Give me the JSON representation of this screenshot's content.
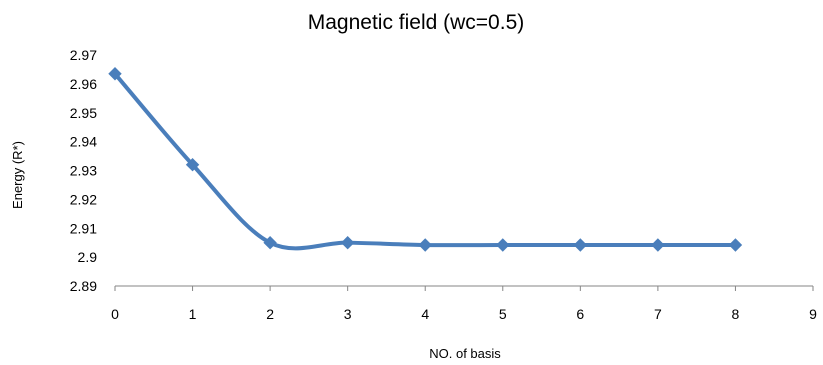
{
  "chart_data": {
    "type": "line",
    "title": "Magnetic field (wc=0.5)",
    "xlabel": "NO. of basis",
    "ylabel": "Energy (R*)",
    "xlim": [
      0,
      9
    ],
    "ylim": [
      2.89,
      2.97
    ],
    "x_ticks": [
      "0",
      "1",
      "2",
      "3",
      "4",
      "5",
      "6",
      "7",
      "8",
      "9"
    ],
    "y_ticks": [
      "2.97",
      "2.96",
      "2.95",
      "2.94",
      "2.93",
      "2.92",
      "2.91",
      "2.9",
      "2.89"
    ],
    "smooth": true,
    "grid": false,
    "legend": "none",
    "series": [
      {
        "color": "#4a7ebb",
        "marker": "diamond",
        "x": [
          0,
          1,
          2,
          3,
          4,
          5,
          6,
          7,
          8
        ],
        "values": [
          2.9635,
          2.932,
          2.905,
          2.905,
          2.9042,
          2.9042,
          2.9042,
          2.9042,
          2.9042
        ]
      }
    ]
  }
}
